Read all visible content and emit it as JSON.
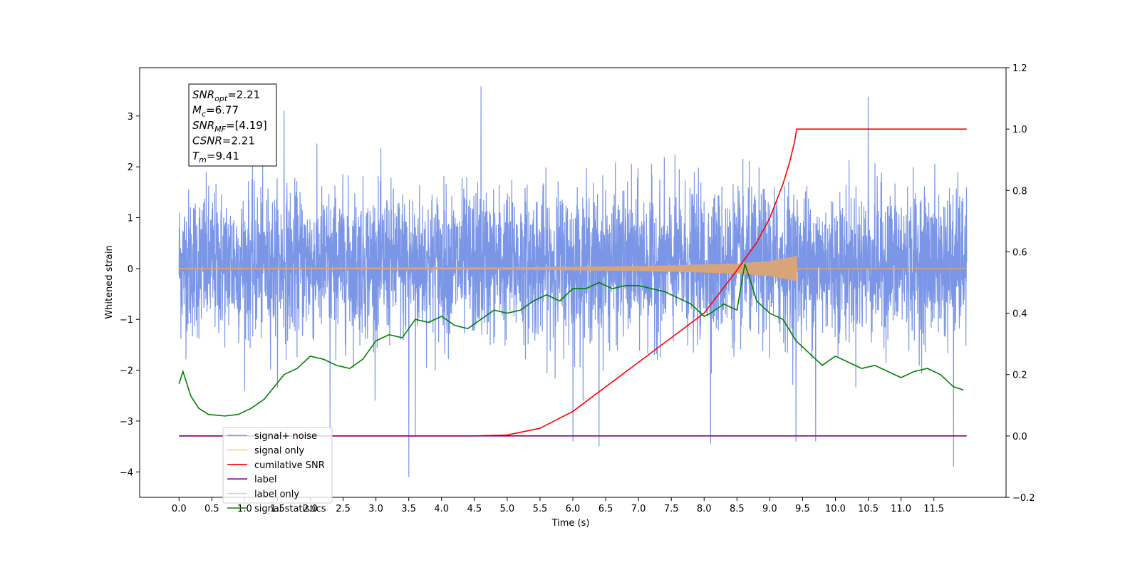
{
  "chart_data": {
    "type": "line",
    "title": "",
    "xlabel": "Time (s)",
    "ylabel": "Whitened strain",
    "y2label": "",
    "xlim": [
      -0.6,
      12.6
    ],
    "ylim": [
      -4.5,
      3.95
    ],
    "y2lim": [
      -0.2,
      1.2
    ],
    "x_ticks": [
      0.0,
      0.5,
      1.0,
      1.5,
      2.0,
      2.5,
      3.0,
      3.5,
      4.0,
      4.5,
      5.0,
      5.5,
      6.0,
      6.5,
      7.0,
      7.5,
      8.0,
      8.5,
      9.0,
      9.5,
      10.0,
      10.5,
      11.0,
      11.5
    ],
    "x_tick_labels": [
      "0.0",
      "0.5",
      "1.0",
      "1.5",
      "2.0",
      "2.5",
      "3.0",
      "3.5",
      "4.0",
      "4.5",
      "5.0",
      "5.5",
      "6.0",
      "6.5",
      "7.0",
      "7.5",
      "8.0",
      "8.5",
      "9.0",
      "9.5",
      "10.0",
      "10.5",
      "11.0",
      "11.5"
    ],
    "y_ticks": [
      -4,
      -3,
      -2,
      -1,
      0,
      1,
      2,
      3
    ],
    "y_tick_labels": [
      "−4",
      "−3",
      "−2",
      "−1",
      "0",
      "1",
      "2",
      "3"
    ],
    "y2_ticks": [
      -0.2,
      0.0,
      0.2,
      0.4,
      0.6,
      0.8,
      1.0,
      1.2
    ],
    "y2_tick_labels": [
      "−0.2",
      "0.0",
      "0.2",
      "0.4",
      "0.6",
      "0.8",
      "1.0",
      "1.2"
    ],
    "grid": false,
    "legend_position": "lower-left",
    "series": [
      {
        "name": "signal+ noise",
        "axis": "left",
        "color": "#7b96e6",
        "style": "dense noise, approx. N(0,1) whitened strain",
        "x_range": [
          0.0,
          12.0
        ],
        "envelope": {
          "typical_min": -1.8,
          "typical_max": 2.0
        },
        "peaks": [
          {
            "x": 4.6,
            "y": 3.58
          },
          {
            "x": 10.5,
            "y": 3.38
          },
          {
            "x": 3.5,
            "y": -4.1
          },
          {
            "x": 11.8,
            "y": -3.9
          },
          {
            "x": 6.4,
            "y": -3.5
          },
          {
            "x": 9.4,
            "y": -3.4
          },
          {
            "x": 9.7,
            "y": -3.4
          },
          {
            "x": 8.1,
            "y": -3.45
          },
          {
            "x": 6.0,
            "y": -3.4
          },
          {
            "x": 1.6,
            "y": 3.1
          },
          {
            "x": 3.6,
            "y": -3.3
          },
          {
            "x": 2.3,
            "y": -3.2
          }
        ]
      },
      {
        "name": "signal only",
        "axis": "left",
        "color": "#d8a57a",
        "style": "chirp, amplitude growing until merger then zero",
        "x_range": [
          0.0,
          12.0
        ],
        "chirp_end_x": 9.41,
        "amplitude": {
          "x": [
            0.0,
            5.0,
            7.0,
            8.5,
            9.0,
            9.41
          ],
          "y": [
            0.005,
            0.015,
            0.04,
            0.09,
            0.14,
            0.24
          ]
        }
      },
      {
        "name": "cumilative SNR",
        "axis": "right",
        "color": "#ff0000",
        "x": [
          0.0,
          4.5,
          5.0,
          5.5,
          6.0,
          6.5,
          7.0,
          7.5,
          8.0,
          8.5,
          8.8,
          9.0,
          9.2,
          9.3,
          9.38,
          9.41,
          12.0
        ],
        "y": [
          0.0,
          0.0,
          0.003,
          0.025,
          0.08,
          0.16,
          0.24,
          0.32,
          0.4,
          0.54,
          0.63,
          0.71,
          0.82,
          0.89,
          0.96,
          1.0,
          1.0
        ]
      },
      {
        "name": "label",
        "axis": "right",
        "color": "#800080",
        "x": [
          0.0,
          12.0
        ],
        "y": [
          0.0,
          0.0
        ]
      },
      {
        "name": "label only",
        "axis": "right",
        "color": "#d3d3d3",
        "legend_only": true,
        "x": [],
        "y": []
      },
      {
        "name": "signal statistics",
        "axis": "right",
        "color": "#008000",
        "x": [
          0.0,
          0.06,
          0.18,
          0.3,
          0.45,
          0.7,
          0.9,
          1.1,
          1.3,
          1.6,
          1.8,
          2.0,
          2.2,
          2.4,
          2.6,
          2.8,
          3.0,
          3.2,
          3.4,
          3.6,
          3.8,
          4.0,
          4.2,
          4.4,
          4.6,
          4.8,
          5.0,
          5.2,
          5.4,
          5.6,
          5.8,
          6.0,
          6.2,
          6.4,
          6.6,
          6.8,
          7.0,
          7.2,
          7.4,
          7.6,
          7.8,
          8.0,
          8.1,
          8.3,
          8.5,
          8.62,
          8.7,
          8.8,
          9.0,
          9.2,
          9.4,
          9.6,
          9.8,
          10.0,
          10.2,
          10.4,
          10.6,
          10.8,
          11.0,
          11.2,
          11.4,
          11.6,
          11.8,
          11.95
        ],
        "y": [
          0.17,
          0.21,
          0.13,
          0.09,
          0.07,
          0.065,
          0.07,
          0.09,
          0.12,
          0.2,
          0.22,
          0.26,
          0.25,
          0.23,
          0.22,
          0.25,
          0.31,
          0.33,
          0.32,
          0.38,
          0.37,
          0.39,
          0.36,
          0.35,
          0.38,
          0.41,
          0.4,
          0.41,
          0.44,
          0.46,
          0.44,
          0.48,
          0.48,
          0.5,
          0.48,
          0.49,
          0.49,
          0.48,
          0.47,
          0.45,
          0.43,
          0.39,
          0.4,
          0.43,
          0.41,
          0.56,
          0.51,
          0.44,
          0.4,
          0.38,
          0.31,
          0.27,
          0.23,
          0.26,
          0.24,
          0.22,
          0.23,
          0.21,
          0.19,
          0.21,
          0.22,
          0.2,
          0.16,
          0.15
        ]
      }
    ],
    "annotation": {
      "lines": [
        {
          "base": "SNR",
          "sub": "opt",
          "rest": "=2.21"
        },
        {
          "base": "M",
          "sub": "c",
          "rest": "=6.77"
        },
        {
          "base": "SNR",
          "sub": "MF",
          "rest": "=[4.19]"
        },
        {
          "base": "CSNR",
          "sub": "",
          "rest": "=2.21"
        },
        {
          "base": "T",
          "sub": "m",
          "rest": "=9.41"
        }
      ]
    }
  }
}
